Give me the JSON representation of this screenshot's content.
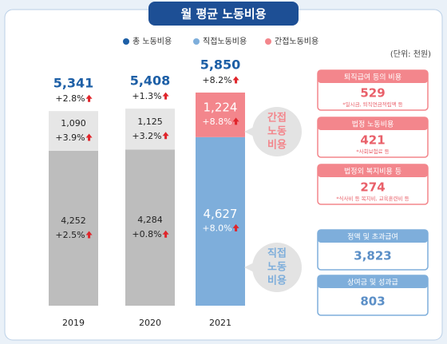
{
  "title": "월 평균 노동비용",
  "chart_data": {
    "type": "stacked_bar",
    "unit": "(단위: 천원)",
    "categories": [
      "2019",
      "2020",
      "2021"
    ],
    "total_name": "총 노동비용",
    "total_color": "#1d5fa6",
    "totals": [
      5341,
      5408,
      5850
    ],
    "total_labels": [
      "5,341",
      "5,408",
      "5,850"
    ],
    "total_growth": [
      "+2.8%",
      "+1.3%",
      "+8.2%"
    ],
    "series": [
      {
        "name": "직접노동비용",
        "color": "#7eaedb",
        "bar_colors": [
          "#bdbdbd",
          "#bdbdbd",
          "#7eaedb"
        ],
        "values": [
          4252,
          4284,
          4627
        ],
        "value_labels": [
          "4,252",
          "4,284",
          "4,627"
        ],
        "growth": [
          "+2.5%",
          "+0.8%",
          "+8.0%"
        ],
        "callout": [
          "직접",
          "노동",
          "비용"
        ],
        "items": [
          {
            "label": "정액 및 초과급여",
            "value": "3,823"
          },
          {
            "label": "상여금 및 성과급",
            "value": "803"
          }
        ]
      },
      {
        "name": "간접노동비용",
        "color": "#f3868c",
        "bar_colors": [
          "#e6e6e6",
          "#e6e6e6",
          "#f3868c"
        ],
        "values": [
          1090,
          1125,
          1224
        ],
        "value_labels": [
          "1,090",
          "1,125",
          "1,224"
        ],
        "growth": [
          "+3.9%",
          "+3.2%",
          "+8.8%"
        ],
        "callout": [
          "간접",
          "노동",
          "비용"
        ],
        "items": [
          {
            "label": "퇴직급여 등의 비용",
            "value": "529",
            "note": "*일시금, 퇴직연금적립액 등"
          },
          {
            "label": "법정 노동비용",
            "value": "421",
            "note": "*사회보험료 등"
          },
          {
            "label": "법정외 복지비용 등",
            "value": "274",
            "note": "*식사비 등 복지비, 교육훈련비 등"
          }
        ]
      }
    ]
  }
}
